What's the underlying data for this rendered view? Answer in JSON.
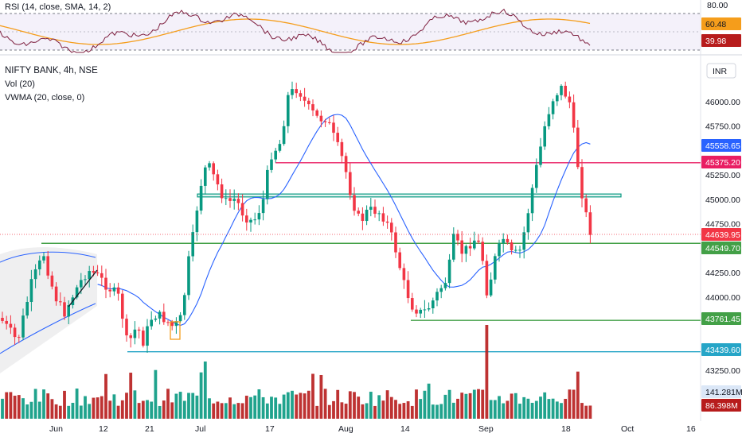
{
  "chart_data": {
    "type": "candlestick",
    "symbol_line": "NIFTY BANK, 4h, NSE",
    "indicators": [
      "Vol (20)",
      "VWMA (20, close, 0)"
    ],
    "currency": "INR",
    "rsi_label": "RSI (14, close, SMA, 14, 2)",
    "rsi_axis": [
      "80.00"
    ],
    "rsi_values": {
      "sma": "60.48",
      "rsi": "39.98"
    },
    "price_ticks": [
      "46000.00",
      "45750.00",
      "45250.00",
      "45000.00",
      "44750.00",
      "44250.00",
      "44000.00",
      "43250.00"
    ],
    "price_tags": [
      {
        "value": "45558.65",
        "color": "#2962ff"
      },
      {
        "value": "45375.20",
        "color": "#e91e63"
      },
      {
        "value": "44639.95",
        "color": "#f23645"
      },
      {
        "value": "44549.70",
        "color": "#43a047"
      },
      {
        "value": "43761.45",
        "color": "#43a047"
      },
      {
        "value": "43439.60",
        "color": "#26a5c7"
      }
    ],
    "volume_tags": [
      {
        "value": "141.281M",
        "color": "#dbe7f7",
        "text_color": "#131722"
      },
      {
        "value": "86.398M",
        "color": "#b71c1c",
        "text_color": "#ffffff"
      }
    ],
    "x_ticks": [
      "Jun",
      "12",
      "21",
      "Jul",
      "17",
      "Aug",
      "14",
      "Sep",
      "18",
      "Oct",
      "16"
    ],
    "horizontal_levels": [
      {
        "price": 45375.2,
        "color": "#e91e63"
      },
      {
        "price": 44549.7,
        "color": "#43a047"
      },
      {
        "price": 43761.45,
        "color": "#43a047"
      },
      {
        "price": 43439.6,
        "color": "#26a5c7"
      }
    ],
    "zone": {
      "price_low": 45025,
      "price_high": 45055,
      "color": "#089981"
    },
    "colors": {
      "up": "#089981",
      "down": "#f23645",
      "vwma": "#2962ff",
      "rsi": "#7e1f3f",
      "rsi_sma": "#f59d1b"
    }
  }
}
